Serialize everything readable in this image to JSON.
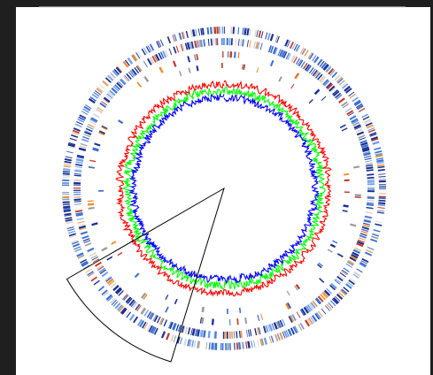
{
  "figure": {
    "type": "circular-genome-map",
    "text": []
  },
  "colors": {
    "background_frame": "#1f1f1f",
    "panel": "#ffffff",
    "gc_content_high": "#ff0000",
    "gc_skew_positive": "#00ff00",
    "gc_skew_negative": "#0000ff",
    "highlight_outline": "#000000",
    "gene_palette": [
      "#1b2f8f",
      "#3a6fd1",
      "#6f9ee8",
      "#d9d4cf",
      "#e8a060",
      "#c33c2b",
      "#9a9a9a",
      "#f08a24"
    ]
  },
  "tracks": [
    {
      "name": "outer-gene-ring",
      "kind": "gene-ticks"
    },
    {
      "name": "inner-gene-ring",
      "kind": "gene-ticks"
    },
    {
      "name": "sparse-feature-ring-1",
      "kind": "feature-ticks"
    },
    {
      "name": "sparse-feature-ring-2",
      "kind": "feature-ticks"
    },
    {
      "name": "gc-content",
      "kind": "line"
    },
    {
      "name": "gc-skew",
      "kind": "line"
    }
  ],
  "highlight": {
    "kind": "wedge-outline"
  }
}
